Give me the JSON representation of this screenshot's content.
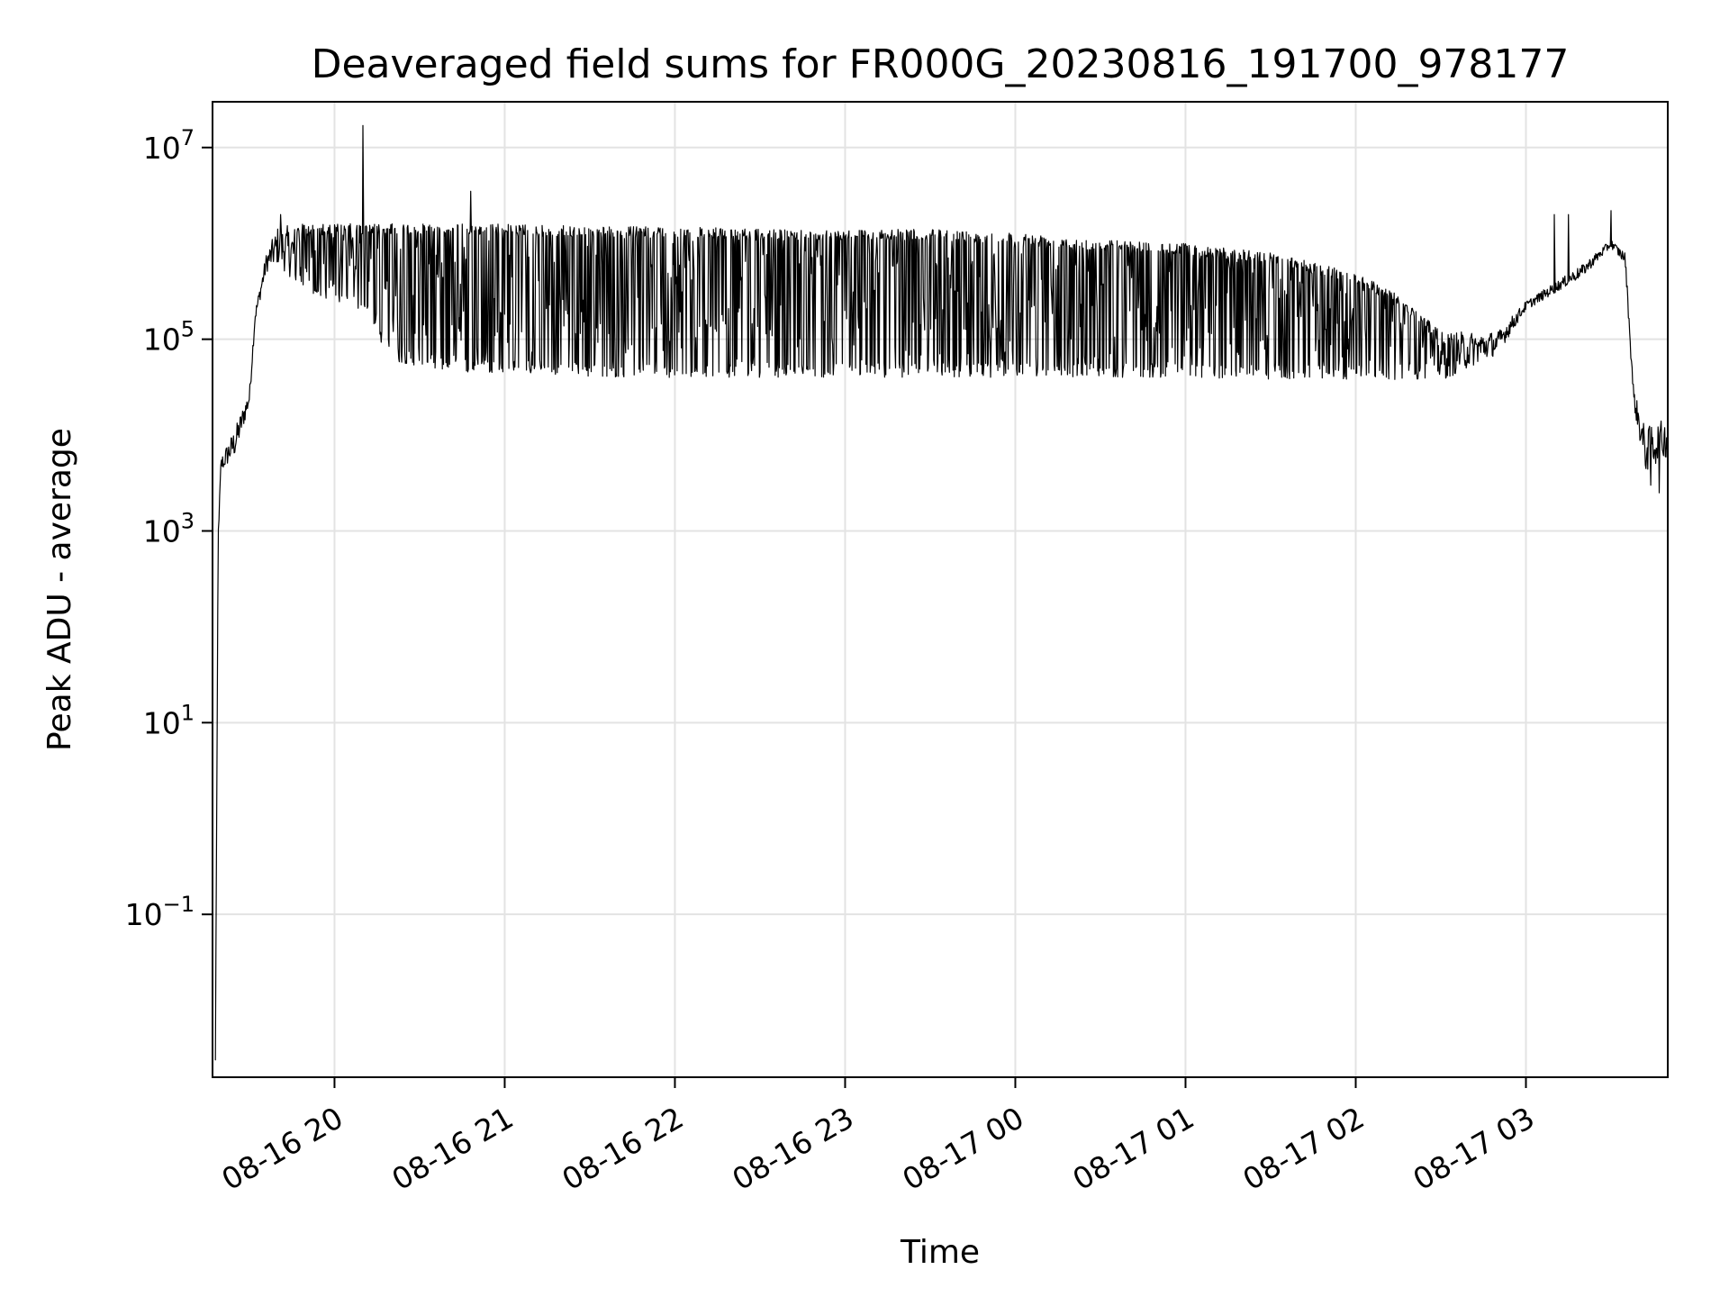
{
  "chart_data": {
    "type": "line",
    "title": "Deaveraged field sums for FR000G_20230816_191700_978177",
    "xlabel": "Time",
    "ylabel": "Peak ADU - average",
    "yscale": "log",
    "grid": true,
    "xlim": [
      "2023-08-16 19:17",
      "2023-08-17 03:50"
    ],
    "ylim": [
      0.002,
      30000000
    ],
    "x_ticks": [
      {
        "value": "2023-08-16 20:00",
        "label": "08-16 20"
      },
      {
        "value": "2023-08-16 21:00",
        "label": "08-16 21"
      },
      {
        "value": "2023-08-16 22:00",
        "label": "08-16 22"
      },
      {
        "value": "2023-08-16 23:00",
        "label": "08-16 23"
      },
      {
        "value": "2023-08-17 00:00",
        "label": "08-17 00"
      },
      {
        "value": "2023-08-17 01:00",
        "label": "08-17 01"
      },
      {
        "value": "2023-08-17 02:00",
        "label": "08-17 02"
      },
      {
        "value": "2023-08-17 03:00",
        "label": "08-17 03"
      }
    ],
    "y_ticks": [
      {
        "value": 0.1,
        "base": "10",
        "exp": "−1"
      },
      {
        "value": 10,
        "base": "10",
        "exp": "1"
      },
      {
        "value": 1000,
        "base": "10",
        "exp": "3"
      },
      {
        "value": 100000,
        "base": "10",
        "exp": "5"
      },
      {
        "value": 10000000,
        "base": "10",
        "exp": "7"
      }
    ],
    "series": [
      {
        "color": "#000000",
        "envelope": [
          {
            "x": "2023-08-16 19:18",
            "upper": 0.003,
            "lower": 0.003
          },
          {
            "x": "2023-08-16 19:19",
            "upper": 1000,
            "lower": 800
          },
          {
            "x": "2023-08-16 19:20",
            "upper": 6000,
            "lower": 4000
          },
          {
            "x": "2023-08-16 19:25",
            "upper": 12000,
            "lower": 6000
          },
          {
            "x": "2023-08-16 19:30",
            "upper": 30000,
            "lower": 20000
          },
          {
            "x": "2023-08-16 19:32",
            "upper": 200000,
            "lower": 150000
          },
          {
            "x": "2023-08-16 19:36",
            "upper": 800000,
            "lower": 500000
          },
          {
            "x": "2023-08-16 19:40",
            "upper": 1500000,
            "lower": 600000
          },
          {
            "x": "2023-08-16 19:50",
            "upper": 1600000,
            "lower": 300000
          },
          {
            "x": "2023-08-16 20:10",
            "upper": 1600000,
            "lower": 200000
          },
          {
            "x": "2023-08-16 20:20",
            "upper": 1600000,
            "lower": 60000
          },
          {
            "x": "2023-08-16 20:40",
            "upper": 1600000,
            "lower": 45000
          },
          {
            "x": "2023-08-16 21:00",
            "upper": 1600000,
            "lower": 45000
          },
          {
            "x": "2023-08-16 21:30",
            "upper": 1500000,
            "lower": 40000
          },
          {
            "x": "2023-08-16 22:00",
            "upper": 1500000,
            "lower": 40000
          },
          {
            "x": "2023-08-16 22:30",
            "upper": 1400000,
            "lower": 40000
          },
          {
            "x": "2023-08-16 23:00",
            "upper": 1400000,
            "lower": 40000
          },
          {
            "x": "2023-08-16 23:30",
            "upper": 1400000,
            "lower": 40000
          },
          {
            "x": "2023-08-17 00:00",
            "upper": 1300000,
            "lower": 40000
          },
          {
            "x": "2023-08-17 00:30",
            "upper": 1100000,
            "lower": 40000
          },
          {
            "x": "2023-08-17 01:00",
            "upper": 1000000,
            "lower": 40000
          },
          {
            "x": "2023-08-17 01:30",
            "upper": 800000,
            "lower": 38000
          },
          {
            "x": "2023-08-17 02:00",
            "upper": 500000,
            "lower": 38000
          },
          {
            "x": "2023-08-17 02:15",
            "upper": 300000,
            "lower": 38000
          },
          {
            "x": "2023-08-17 02:30",
            "upper": 120000,
            "lower": 36000
          },
          {
            "x": "2023-08-17 02:50",
            "upper": 120000,
            "lower": 70000
          },
          {
            "x": "2023-08-17 03:00",
            "upper": 250000,
            "lower": 200000
          },
          {
            "x": "2023-08-17 03:20",
            "upper": 600000,
            "lower": 450000
          },
          {
            "x": "2023-08-17 03:30",
            "upper": 1100000,
            "lower": 900000
          },
          {
            "x": "2023-08-17 03:35",
            "upper": 800000,
            "lower": 600000
          },
          {
            "x": "2023-08-17 03:38",
            "upper": 30000,
            "lower": 20000
          },
          {
            "x": "2023-08-17 03:42",
            "upper": 12000,
            "lower": 4000
          },
          {
            "x": "2023-08-17 03:50",
            "upper": 15000,
            "lower": 6000
          }
        ],
        "spikes": [
          {
            "x": "2023-08-16 20:10",
            "y": 17000000
          },
          {
            "x": "2023-08-16 20:48",
            "y": 3500000
          },
          {
            "x": "2023-08-16 19:41",
            "y": 2000000
          },
          {
            "x": "2023-08-17 03:30",
            "y": 2200000
          },
          {
            "x": "2023-08-17 03:10",
            "y": 2000000
          },
          {
            "x": "2023-08-17 03:15",
            "y": 2000000
          },
          {
            "x": "2023-08-16 19:21",
            "y": 5000
          },
          {
            "x": "2023-08-17 03:47",
            "y": 2500
          },
          {
            "x": "2023-08-17 03:44",
            "y": 3000
          }
        ]
      }
    ]
  }
}
